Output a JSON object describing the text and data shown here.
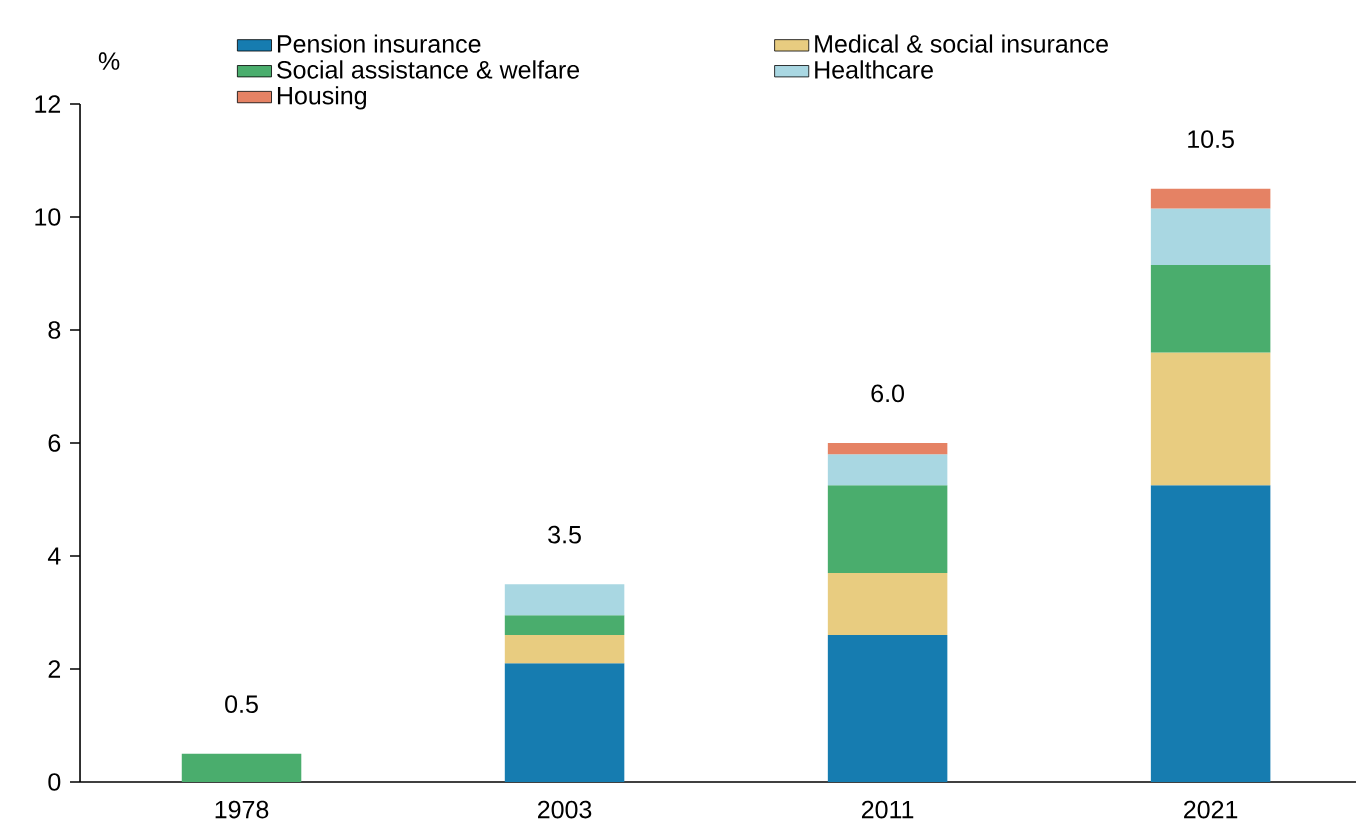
{
  "chart_data": {
    "type": "bar",
    "stacked": true,
    "ylabel": "%",
    "categories": [
      "1978",
      "2003",
      "2011",
      "2021"
    ],
    "series": [
      {
        "name": "Pension insurance",
        "color": "#167cb0",
        "values": [
          null,
          2.1,
          2.6,
          5.25
        ]
      },
      {
        "name": "Medical & social insurance",
        "color": "#e8cc80",
        "values": [
          null,
          0.5,
          1.1,
          2.35
        ]
      },
      {
        "name": "Social assistance & welfare",
        "color": "#4aad6d",
        "values": [
          0.5,
          0.35,
          1.55,
          1.55
        ]
      },
      {
        "name": "Healthcare",
        "color": "#a9d7e2",
        "values": [
          null,
          0.55,
          0.55,
          1.0
        ]
      },
      {
        "name": "Housing",
        "color": "#e58264",
        "values": [
          null,
          null,
          0.2,
          0.35
        ]
      }
    ],
    "totals": [
      "0.5",
      "3.5",
      "6.0",
      "10.5"
    ],
    "ylim": [
      0,
      12
    ],
    "yticks": [
      0,
      2,
      4,
      6,
      8,
      10,
      12
    ],
    "legend": "top",
    "grid": false
  }
}
